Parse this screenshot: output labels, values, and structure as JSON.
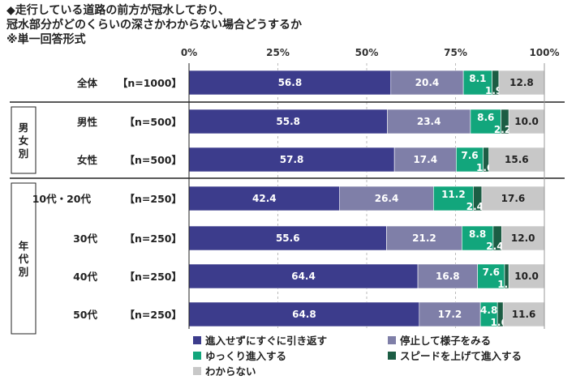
{
  "title": {
    "line1": "◆走行している道路の前方が冠水しており、",
    "line2": "冠水部分がどのくらいの深さかわからない場合どうするか",
    "line3": "※単一回答形式"
  },
  "colors": [
    "#3c3c8c",
    "#7f7fa8",
    "#12a67c",
    "#1c5d44",
    "#c8c8c8"
  ],
  "chart_data": {
    "type": "bar",
    "orientation": "horizontal",
    "stacked": true,
    "title": "◆走行している道路の前方が冠水しており、冠水部分がどのくらいの深さかわからない場合どうするか",
    "xlim": [
      0,
      100
    ],
    "ticks": [
      "0%",
      "25%",
      "50%",
      "75%",
      "100%"
    ],
    "tick_values": [
      0,
      25,
      50,
      75,
      100
    ],
    "groups": [
      {
        "label": "",
        "rows": [
          0
        ]
      },
      {
        "label": "男女別",
        "rows": [
          1,
          2
        ]
      },
      {
        "label": "年代別",
        "rows": [
          3,
          4,
          5,
          6
        ]
      }
    ],
    "categories": [
      {
        "name": "全体",
        "n": "【n=1000】"
      },
      {
        "name": "男性",
        "n": "【n=500】"
      },
      {
        "name": "女性",
        "n": "【n=500】"
      },
      {
        "name": "10代・20代",
        "n": "【n=250】"
      },
      {
        "name": "30代",
        "n": "【n=250】"
      },
      {
        "name": "40代",
        "n": "【n=250】"
      },
      {
        "name": "50代",
        "n": "【n=250】"
      }
    ],
    "series": [
      {
        "name": "進入せずにすぐに引き返す",
        "values": [
          56.8,
          55.8,
          57.8,
          42.4,
          55.6,
          64.4,
          64.8
        ]
      },
      {
        "name": "停止して様子をみる",
        "values": [
          20.4,
          23.4,
          17.4,
          26.4,
          21.2,
          16.8,
          17.2
        ]
      },
      {
        "name": "ゆっくり進入する",
        "values": [
          8.1,
          8.6,
          7.6,
          11.2,
          8.8,
          7.6,
          4.8
        ]
      },
      {
        "name": "スピードを上げて進入する",
        "values": [
          1.9,
          2.2,
          1.6,
          2.4,
          2.4,
          1.2,
          1.6
        ]
      },
      {
        "name": "わからない",
        "values": [
          12.8,
          10.0,
          15.6,
          17.6,
          12.0,
          10.0,
          11.6
        ]
      }
    ],
    "value_labels": [
      [
        "56.8",
        "55.8",
        "57.8",
        "42.4",
        "55.6",
        "64.4",
        "64.8"
      ],
      [
        "20.4",
        "23.4",
        "17.4",
        "26.4",
        "21.2",
        "16.8",
        "17.2"
      ],
      [
        "8.1",
        "8.6",
        "7.6",
        "11.2",
        "8.8",
        "7.6",
        "4.8"
      ],
      [
        "1.9",
        "2.2",
        "1.6",
        "2.4",
        "2.4",
        "1.2",
        "1.6"
      ],
      [
        "12.8",
        "10.0",
        "15.6",
        "17.6",
        "12.0",
        "10.0",
        "11.6"
      ]
    ]
  }
}
